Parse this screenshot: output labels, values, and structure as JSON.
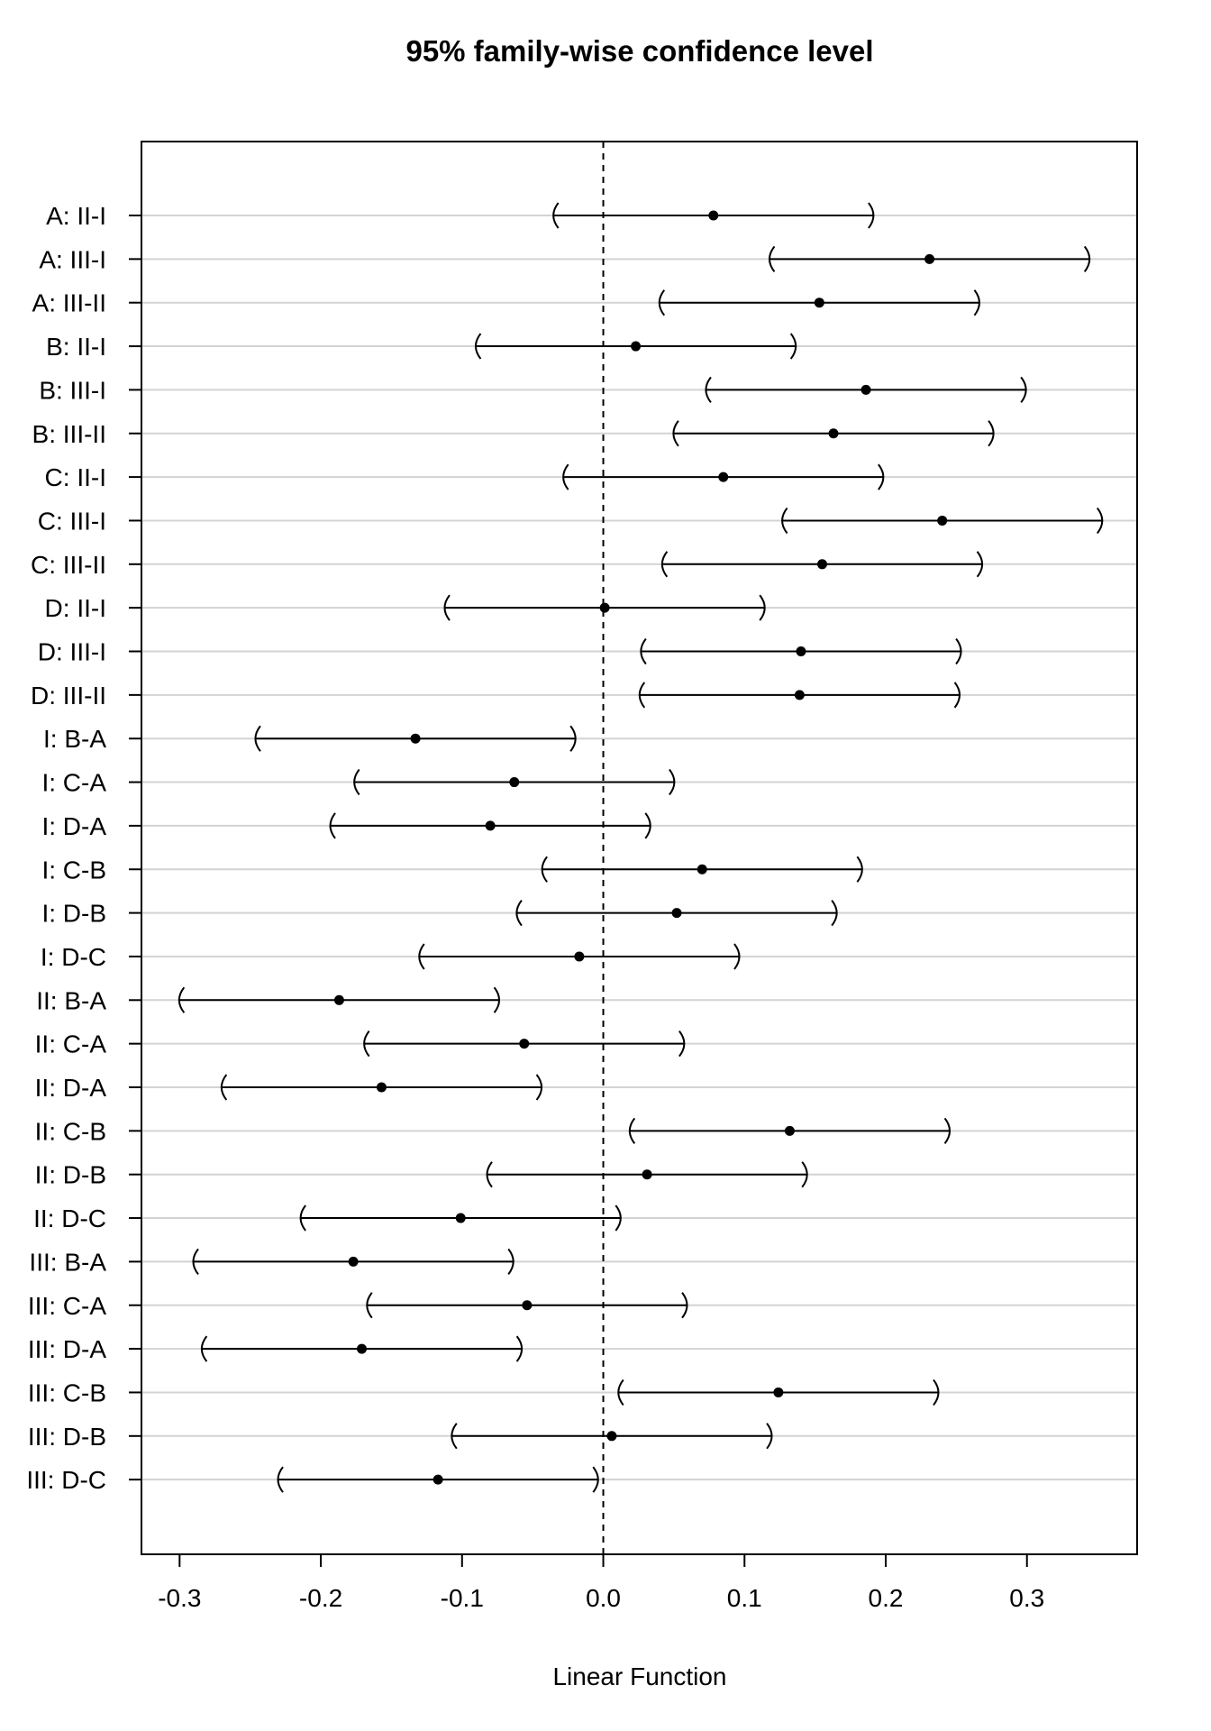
{
  "chart_data": {
    "type": "interval",
    "title": "95% family-wise confidence level",
    "xlabel": "Linear Function",
    "ylabel": "",
    "xlim": [
      -0.327,
      0.378
    ],
    "xticks": [
      -0.3,
      -0.2,
      -0.1,
      0.0,
      0.1,
      0.2,
      0.3
    ],
    "xtick_labels": [
      "-0.3",
      "-0.2",
      "-0.1",
      "0.0",
      "0.1",
      "0.2",
      "0.3"
    ],
    "reference_line": 0.0,
    "grid": "horizontal",
    "categories": [
      "A: II-I",
      "A: III-I",
      "A: III-II",
      "B: II-I",
      "B: III-I",
      "B: III-II",
      "C: II-I",
      "C: III-I",
      "C: III-II",
      "D: II-I",
      "D: III-I",
      "D: III-II",
      "I: B-A",
      "I: C-A",
      "I: D-A",
      "I: C-B",
      "I: D-B",
      "I: D-C",
      "II: B-A",
      "II: C-A",
      "II: D-A",
      "II: C-B",
      "II: D-B",
      "II: D-C",
      "III: B-A",
      "III: C-A",
      "III: D-A",
      "III: C-B",
      "III: D-B",
      "III: D-C"
    ],
    "estimates": [
      0.078,
      0.231,
      0.153,
      0.023,
      0.186,
      0.163,
      0.085,
      0.24,
      0.155,
      0.001,
      0.14,
      0.139,
      -0.133,
      -0.063,
      -0.08,
      0.07,
      0.052,
      -0.017,
      -0.187,
      -0.056,
      -0.157,
      0.132,
      0.031,
      -0.101,
      -0.177,
      -0.054,
      -0.171,
      0.124,
      0.006,
      -0.117
    ],
    "lower": [
      -0.035,
      0.118,
      0.04,
      -0.09,
      0.073,
      0.05,
      -0.028,
      0.127,
      0.042,
      -0.112,
      0.027,
      0.026,
      -0.246,
      -0.176,
      -0.193,
      -0.043,
      -0.061,
      -0.13,
      -0.3,
      -0.169,
      -0.27,
      0.019,
      -0.082,
      -0.214,
      -0.29,
      -0.167,
      -0.284,
      0.011,
      -0.107,
      -0.23
    ],
    "upper": [
      0.191,
      0.344,
      0.266,
      0.136,
      0.299,
      0.276,
      0.198,
      0.353,
      0.268,
      0.114,
      0.253,
      0.252,
      -0.02,
      0.05,
      0.033,
      0.183,
      0.165,
      0.096,
      -0.074,
      0.057,
      -0.044,
      0.245,
      0.144,
      0.012,
      -0.064,
      0.059,
      -0.058,
      0.237,
      0.119,
      -0.004
    ]
  }
}
